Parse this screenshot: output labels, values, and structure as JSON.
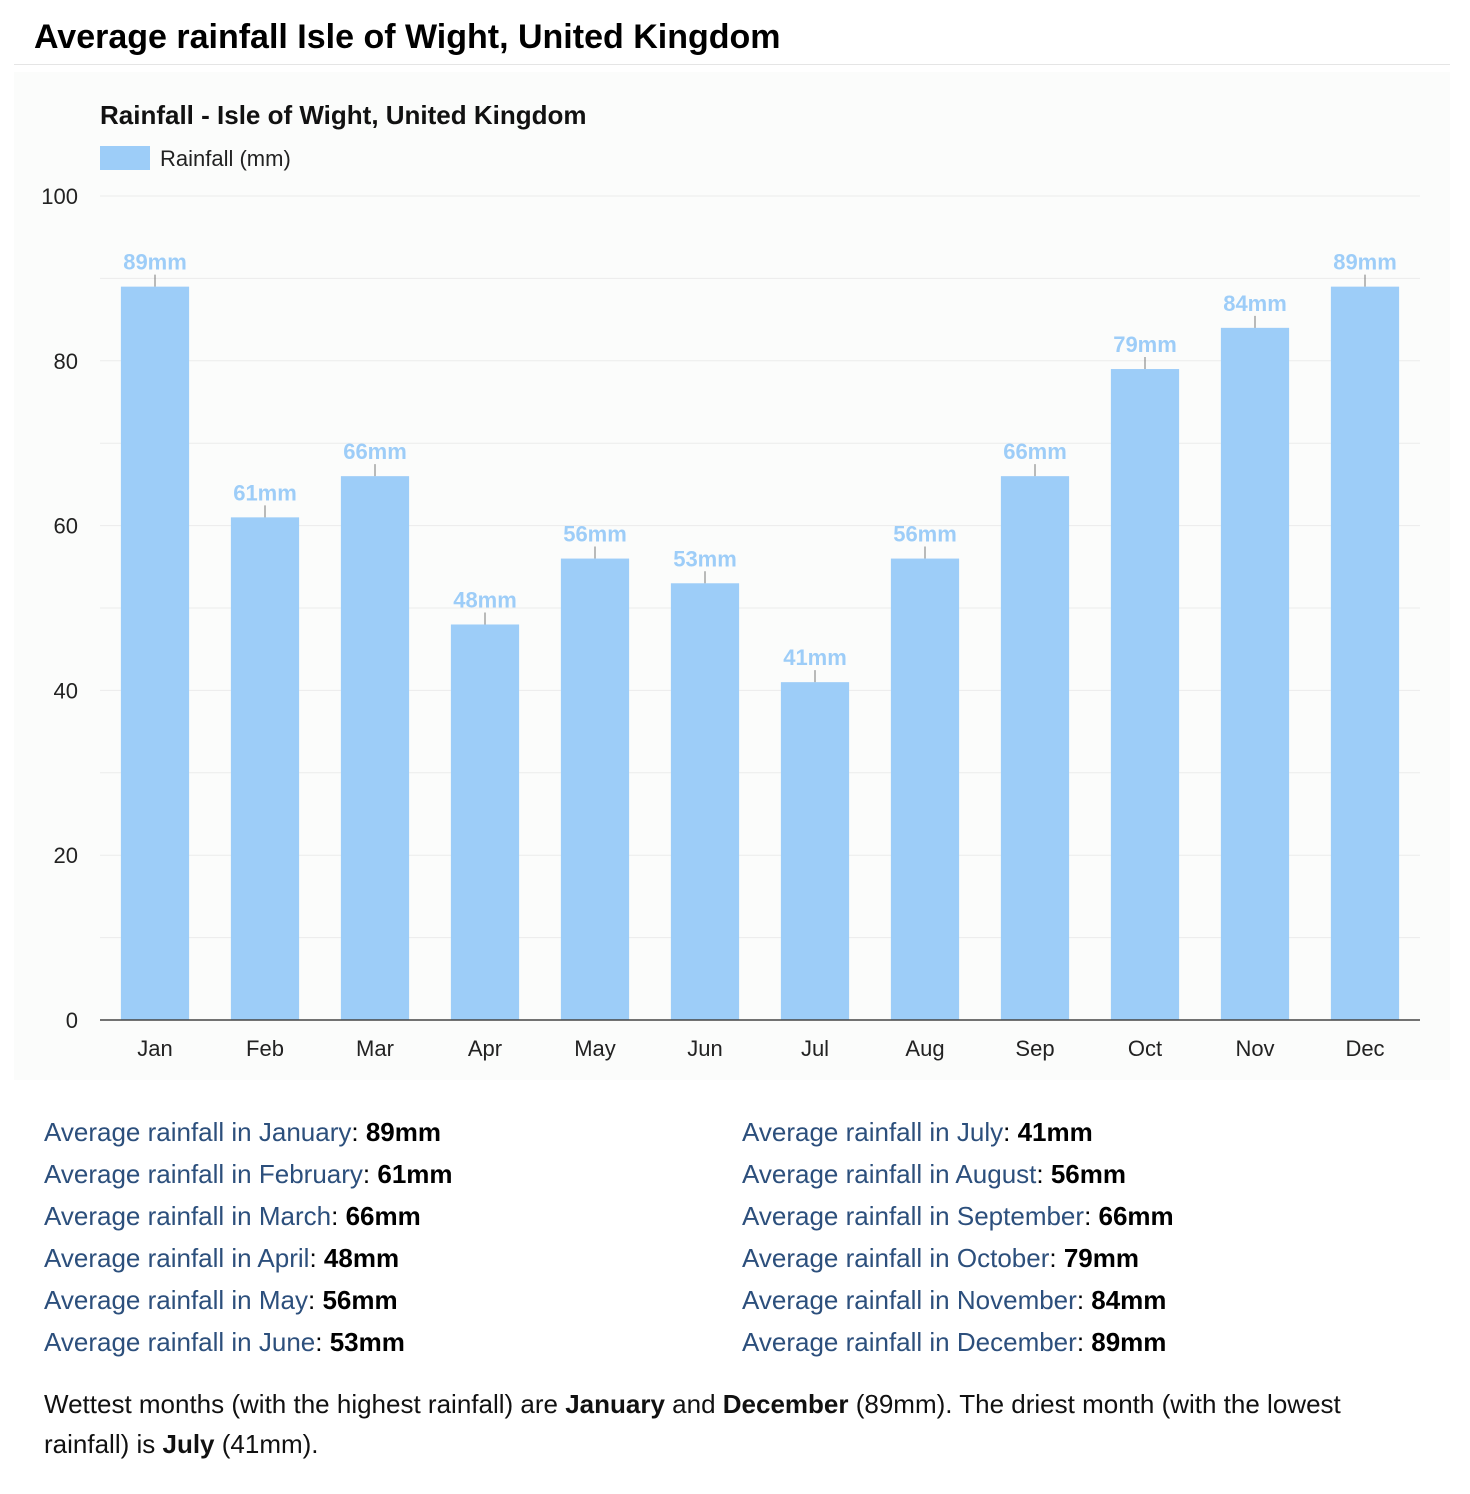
{
  "page_title": "Average rainfall Isle of Wight, United Kingdom",
  "colors": {
    "bar": "#9dcdf8",
    "label": "#9dcdf8",
    "grid": "#ebebeb",
    "axis": "#333333",
    "text": "#222222",
    "link": "#2c4f7c"
  },
  "chart_data": {
    "type": "bar",
    "title": "Rainfall - Isle of Wight, United Kingdom",
    "legend": {
      "entries": [
        "Rainfall (mm)"
      ],
      "placement": "top-left"
    },
    "categories": [
      "Jan",
      "Feb",
      "Mar",
      "Apr",
      "May",
      "Jun",
      "Jul",
      "Aug",
      "Sep",
      "Oct",
      "Nov",
      "Dec"
    ],
    "series": [
      {
        "name": "Rainfall (mm)",
        "values": [
          89,
          61,
          66,
          48,
          56,
          53,
          41,
          56,
          66,
          79,
          84,
          89
        ]
      }
    ],
    "data_labels": [
      "89mm",
      "61mm",
      "66mm",
      "48mm",
      "56mm",
      "53mm",
      "41mm",
      "56mm",
      "66mm",
      "79mm",
      "84mm",
      "89mm"
    ],
    "ylim": [
      0,
      100
    ],
    "y_ticks": [
      0,
      20,
      40,
      60,
      80,
      100
    ],
    "grid": true
  },
  "stats": {
    "left": [
      {
        "label": "Average rainfall in January",
        "sep": ": ",
        "value": "89mm"
      },
      {
        "label": "Average rainfall in February",
        "sep": ": ",
        "value": "61mm"
      },
      {
        "label": "Average rainfall in March",
        "sep": ": ",
        "value": "66mm"
      },
      {
        "label": "Average rainfall in April",
        "sep": ": ",
        "value": "48mm"
      },
      {
        "label": "Average rainfall in May",
        "sep": ": ",
        "value": "56mm"
      },
      {
        "label": "Average rainfall in June",
        "sep": ": ",
        "value": "53mm"
      }
    ],
    "right": [
      {
        "label": "Average rainfall in July",
        "sep": ": ",
        "value": "41mm"
      },
      {
        "label": "Average rainfall in August",
        "sep": ": ",
        "value": "56mm"
      },
      {
        "label": "Average rainfall in September",
        "sep": ": ",
        "value": "66mm"
      },
      {
        "label": "Average rainfall in October",
        "sep": ": ",
        "value": "79mm"
      },
      {
        "label": "Average rainfall in November",
        "sep": ": ",
        "value": "84mm"
      },
      {
        "label": "Average rainfall in December",
        "sep": ": ",
        "value": "89mm"
      }
    ]
  },
  "summary": {
    "p1": "Wettest months (with the highest rainfall) are ",
    "b1": "January",
    "p2": " and ",
    "b2": "December",
    "p3": " (89mm). The driest month (with the lowest rainfall) is ",
    "b3": "July",
    "p4": " (41mm)."
  }
}
